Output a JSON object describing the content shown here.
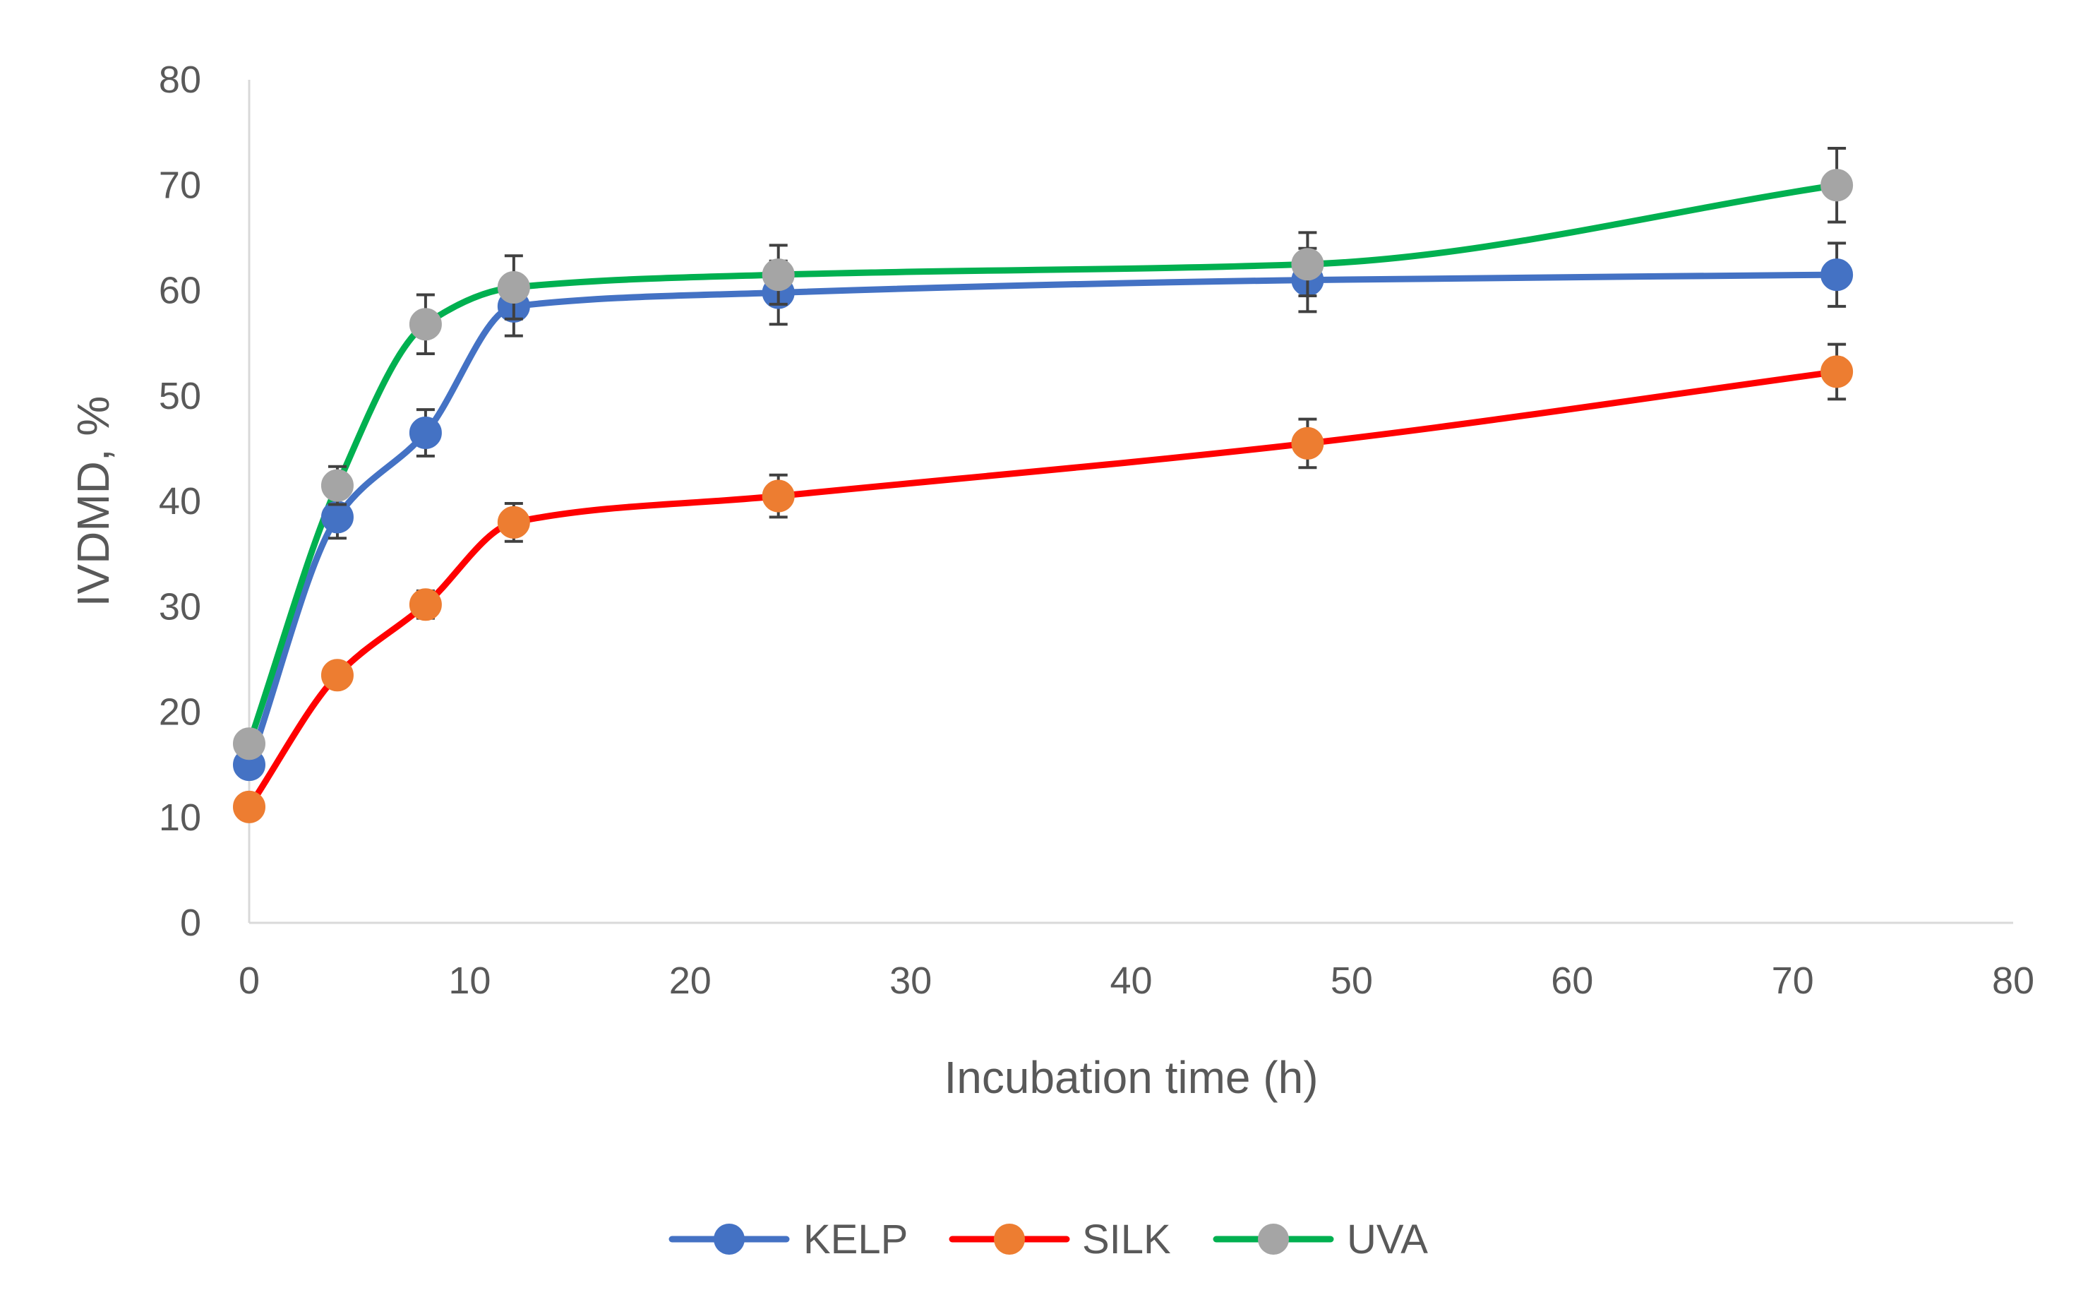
{
  "chart_data": {
    "type": "line",
    "title": "",
    "xlabel": "Incubation time (h)",
    "ylabel": "IVDMD, %",
    "xlim": [
      0,
      80
    ],
    "ylim": [
      0,
      80
    ],
    "xticks": [
      0,
      10,
      20,
      30,
      40,
      50,
      60,
      70,
      80
    ],
    "yticks": [
      0,
      10,
      20,
      30,
      40,
      50,
      60,
      70,
      80
    ],
    "grid": false,
    "smooth": true,
    "legend_position": "bottom",
    "x": [
      0,
      4,
      8,
      12,
      24,
      48,
      72
    ],
    "series": [
      {
        "name": "KELP",
        "color": "#4472C4",
        "values": [
          15.0,
          38.5,
          46.5,
          58.5,
          59.8,
          61.0,
          61.5
        ],
        "errors": [
          0,
          2.0,
          2.2,
          2.8,
          3.0,
          3.0,
          3.0
        ]
      },
      {
        "name": "SILK",
        "color": "#FF0000",
        "marker_color": "#ED7D31",
        "values": [
          11.0,
          23.5,
          30.2,
          38.0,
          40.5,
          45.5,
          52.3
        ],
        "errors": [
          0,
          1.0,
          1.3,
          1.8,
          2.0,
          2.3,
          2.6
        ]
      },
      {
        "name": "UVA",
        "color": "#00B050",
        "marker_color": "#A5A5A5",
        "values": [
          17.0,
          41.5,
          56.8,
          60.3,
          61.5,
          62.5,
          70.0
        ],
        "errors": [
          0,
          1.8,
          2.8,
          3.0,
          2.8,
          3.0,
          3.5
        ]
      }
    ]
  }
}
